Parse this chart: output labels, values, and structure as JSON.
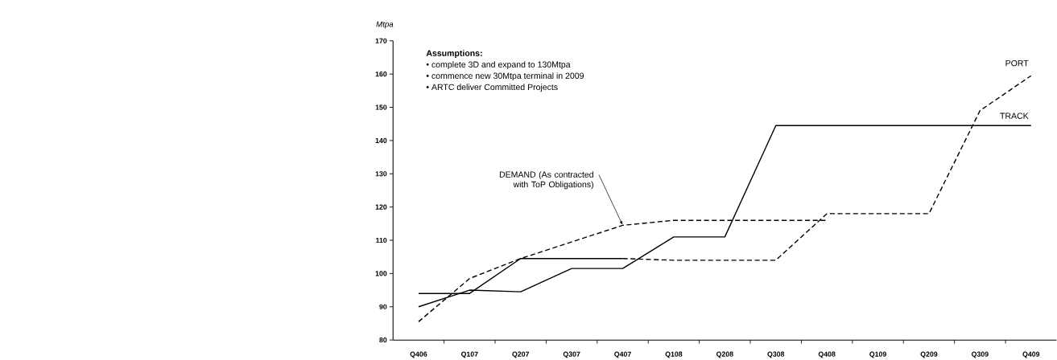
{
  "chart_data": {
    "type": "line",
    "ylabel": "Mtpa",
    "categories": [
      "Q406",
      "Q107",
      "Q207",
      "Q307",
      "Q407",
      "Q108",
      "Q208",
      "Q308",
      "Q408",
      "Q109",
      "Q209",
      "Q309",
      "Q409"
    ],
    "series": [
      {
        "name": "PORT",
        "color": "#000000",
        "line_style": "dashed",
        "values": [
          null,
          null,
          null,
          null,
          104.5,
          104,
          104,
          104,
          118,
          118,
          118,
          149,
          159.5
        ]
      },
      {
        "color": "#000000",
        "line_style": "solid",
        "values": [
          94,
          94,
          104.5,
          104.5,
          104.5,
          null,
          null,
          null,
          null,
          null,
          null,
          null,
          null
        ]
      },
      {
        "name": "TRACK",
        "color": "#000000",
        "line_style": "solid",
        "values": [
          90,
          95,
          94.5,
          101.5,
          101.5,
          111,
          111,
          144.5,
          144.5,
          144.5,
          144.5,
          144.5,
          144.5
        ]
      },
      {
        "color": "#000000",
        "line_style": "dashed",
        "values": [
          85.5,
          98.5,
          104.5,
          109.5,
          114.5,
          116,
          116,
          116,
          116,
          null,
          null,
          null,
          null
        ]
      }
    ],
    "ylim": [
      80,
      170
    ],
    "yticks": [
      80,
      90,
      100,
      110,
      120,
      130,
      140,
      150,
      160,
      170
    ],
    "marker": "none",
    "grid": false,
    "annotations": [
      "Assumptions:",
      "• complete 3D and expand to 130Mtpa",
      "• commence new 30Mtpa terminal in 2009",
      "• ARTC deliver Committed Projects",
      {
        "text": "DEMAND (As contracted with ToP Obligations)",
        "x": "Q407",
        "y": 114.5
      }
    ]
  }
}
